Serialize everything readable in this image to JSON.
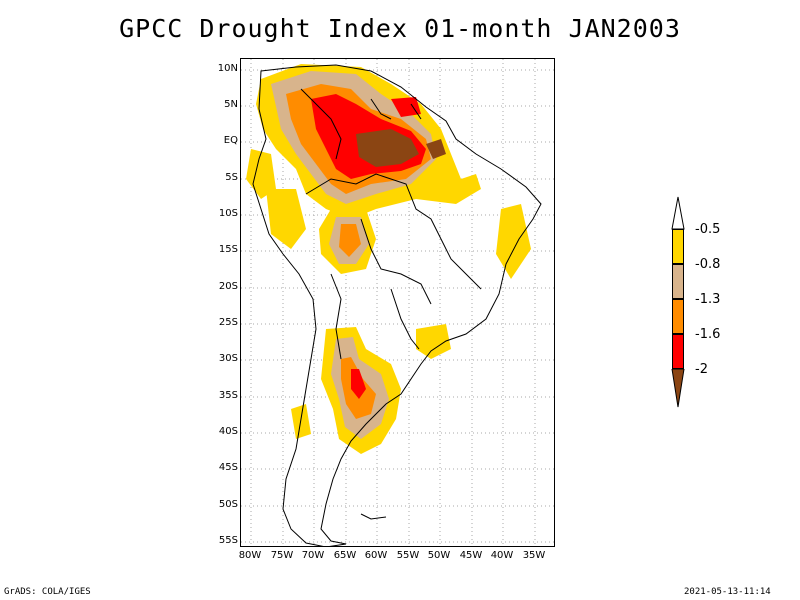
{
  "title": "GPCC Drought Index 01-month JAN2003",
  "y_ticks": [
    "10N",
    "5N",
    "EQ",
    "5S",
    "10S",
    "15S",
    "20S",
    "25S",
    "30S",
    "35S",
    "40S",
    "45S",
    "50S",
    "55S"
  ],
  "x_ticks": [
    "80W",
    "75W",
    "70W",
    "65W",
    "60W",
    "55W",
    "50W",
    "45W",
    "40W",
    "35W"
  ],
  "legend": {
    "labels": [
      "-0.5",
      "-0.8",
      "-1.3",
      "-1.6",
      "-2"
    ],
    "colors": [
      "#ffd700",
      "#d8b48c",
      "#ff8c00",
      "#ff0000",
      "#8b4513"
    ]
  },
  "footer_left": "GrADS: COLA/IGES",
  "footer_right": "2021-05-13-11:14"
}
